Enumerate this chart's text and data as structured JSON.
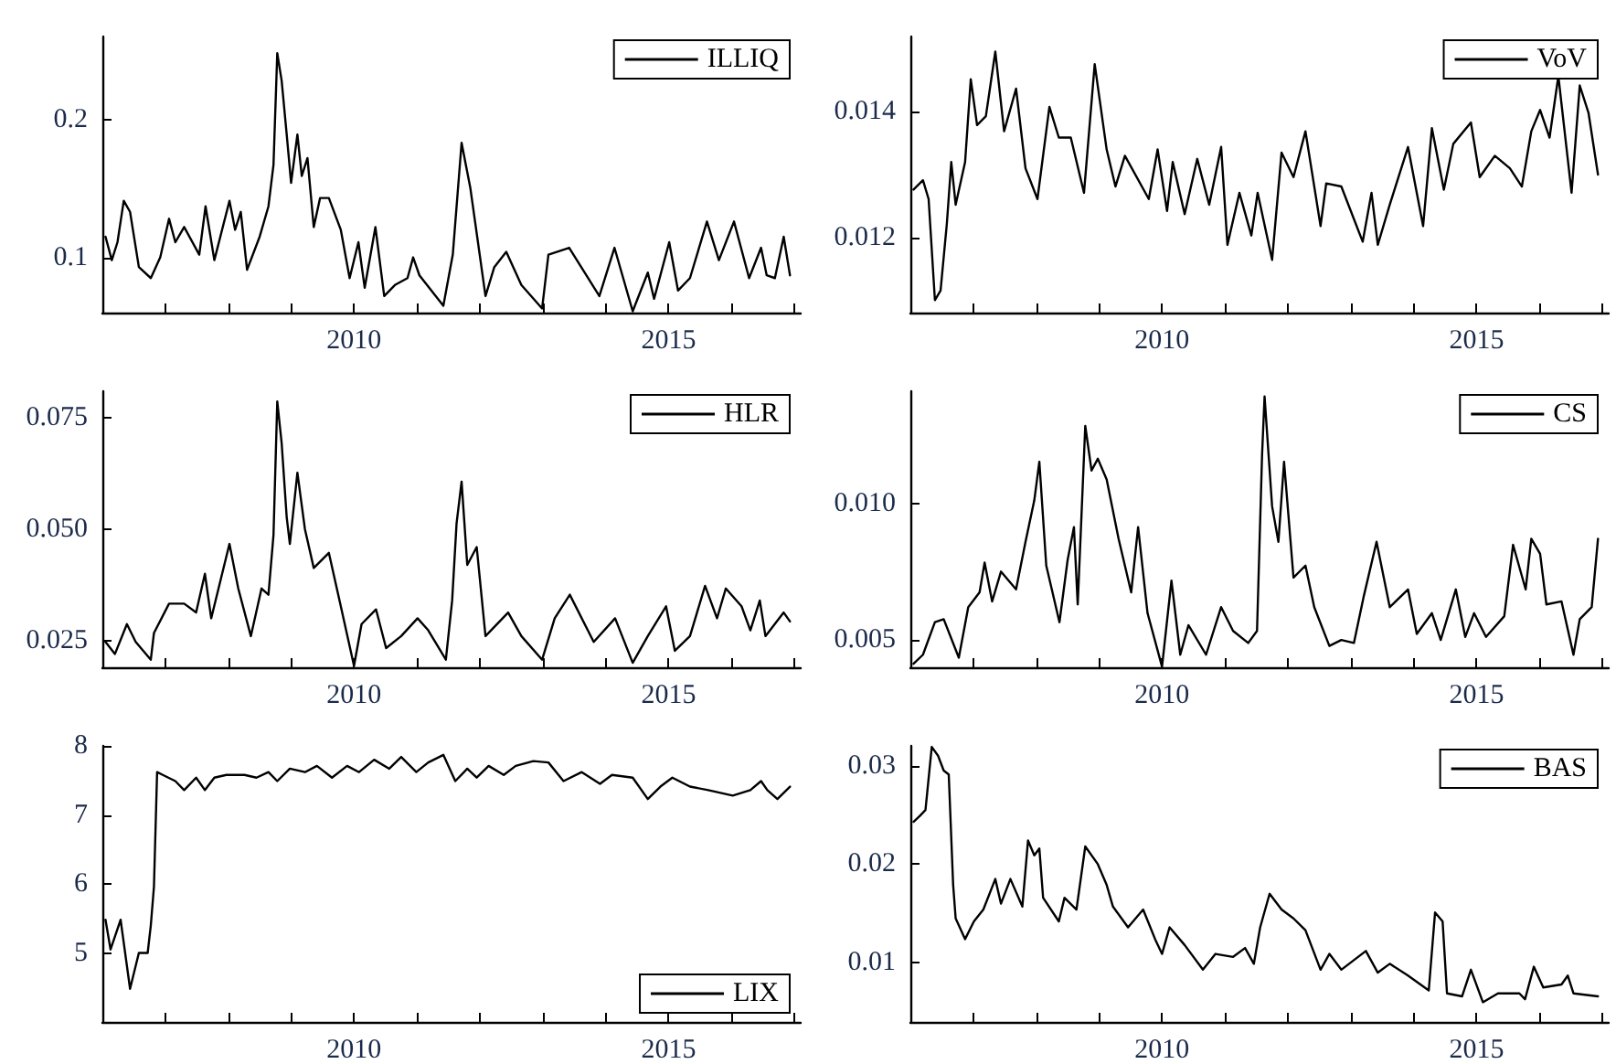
{
  "chart_data": [
    {
      "type": "line",
      "x": [
        2006.05,
        2006.15,
        2006.24,
        2006.34,
        2006.44,
        2006.58,
        2006.77,
        2006.92,
        2007.06,
        2007.16,
        2007.3,
        2007.54,
        2007.64,
        2007.78,
        2008.02,
        2008.11,
        2008.2,
        2008.3,
        2008.5,
        2008.64,
        2008.72,
        2008.78,
        2008.85,
        2008.93,
        2009.0,
        2009.1,
        2009.17,
        2009.26,
        2009.36,
        2009.46,
        2009.6,
        2009.79,
        2009.93,
        2010.07,
        2010.17,
        2010.34,
        2010.48,
        2010.65,
        2010.85,
        2010.94,
        2011.04,
        2011.42,
        2011.57,
        2011.71,
        2011.85,
        2012.09,
        2012.23,
        2012.42,
        2012.66,
        2012.99,
        2013.09,
        2013.42,
        2013.9,
        2014.14,
        2014.43,
        2014.67,
        2014.77,
        2015.01,
        2015.15,
        2015.34,
        2015.61,
        2015.8,
        2016.04,
        2016.28,
        2016.47,
        2016.56,
        2016.69,
        2016.83,
        2016.93
      ],
      "series": [
        {
          "name": "ILLIQ",
          "color": "#000000",
          "values": [
            0.115,
            0.098,
            0.111,
            0.141,
            0.133,
            0.093,
            0.085,
            0.1,
            0.128,
            0.111,
            0.122,
            0.102,
            0.137,
            0.098,
            0.141,
            0.12,
            0.133,
            0.091,
            0.115,
            0.137,
            0.167,
            0.248,
            0.228,
            0.189,
            0.154,
            0.189,
            0.159,
            0.172,
            0.122,
            0.143,
            0.143,
            0.12,
            0.085,
            0.111,
            0.078,
            0.122,
            0.072,
            0.08,
            0.085,
            0.1,
            0.087,
            0.065,
            0.102,
            0.183,
            0.15,
            0.072,
            0.093,
            0.104,
            0.08,
            0.063,
            0.102,
            0.107,
            0.072,
            0.107,
            0.061,
            0.089,
            0.07,
            0.111,
            0.076,
            0.085,
            0.126,
            0.098,
            0.126,
            0.085,
            0.107,
            0.087,
            0.085,
            0.115,
            0.087
          ]
        }
      ],
      "xlim": [
        2006,
        2017.1
      ],
      "xticks": [
        {
          "value": 2007,
          "label": null
        },
        {
          "value": 2008,
          "label": null
        },
        {
          "value": 2009,
          "label": null
        },
        {
          "value": 2010,
          "label": "2010"
        },
        {
          "value": 2011,
          "label": null
        },
        {
          "value": 2012,
          "label": null
        },
        {
          "value": 2013,
          "label": null
        },
        {
          "value": 2014,
          "label": null
        },
        {
          "value": 2015,
          "label": "2015"
        },
        {
          "value": 2016,
          "label": null
        },
        {
          "value": 2017,
          "label": null
        }
      ],
      "ylim": [
        0.06,
        0.26
      ],
      "yticks": [
        0.1,
        0.2
      ],
      "legend": "top right",
      "grid": false,
      "marker": "none",
      "line_style": "solid"
    },
    {
      "type": "line",
      "x": [
        2006.05,
        2006.2,
        2006.29,
        2006.39,
        2006.48,
        2006.58,
        2006.65,
        2006.72,
        2006.87,
        2006.96,
        2007.06,
        2007.2,
        2007.35,
        2007.49,
        2007.68,
        2007.83,
        2008.02,
        2008.21,
        2008.36,
        2008.55,
        2008.76,
        2008.93,
        2009.12,
        2009.26,
        2009.41,
        2009.79,
        2009.93,
        2010.08,
        2010.17,
        2010.36,
        2010.56,
        2010.75,
        2010.94,
        2011.04,
        2011.23,
        2011.42,
        2011.52,
        2011.75,
        2011.9,
        2012.09,
        2012.28,
        2012.52,
        2012.61,
        2012.85,
        2013.19,
        2013.33,
        2013.43,
        2013.62,
        2013.91,
        2014.15,
        2014.29,
        2014.48,
        2014.63,
        2014.91,
        2015.05,
        2015.29,
        2015.53,
        2015.72,
        2015.87,
        2016.01,
        2016.16,
        2016.3,
        2016.51,
        2016.64,
        2016.78,
        2016.93
      ],
      "series": [
        {
          "name": "VoV",
          "color": "#000000",
          "values": [
            0.01276,
            0.01291,
            0.01261,
            0.011,
            0.01115,
            0.01222,
            0.0132,
            0.01252,
            0.0132,
            0.01452,
            0.01379,
            0.01393,
            0.01496,
            0.01369,
            0.01437,
            0.0131,
            0.01261,
            0.01408,
            0.01359,
            0.01359,
            0.01271,
            0.01476,
            0.0134,
            0.01281,
            0.0133,
            0.01261,
            0.0134,
            0.01242,
            0.0132,
            0.01237,
            0.01325,
            0.01252,
            0.01344,
            0.01188,
            0.01271,
            0.01203,
            0.01271,
            0.01164,
            0.01335,
            0.01296,
            0.01369,
            0.01218,
            0.01286,
            0.01281,
            0.01193,
            0.01271,
            0.01188,
            0.01252,
            0.01344,
            0.01218,
            0.01374,
            0.01276,
            0.01349,
            0.01383,
            0.01296,
            0.0133,
            0.0131,
            0.01281,
            0.01369,
            0.01403,
            0.01359,
            0.01457,
            0.01271,
            0.01442,
            0.01398,
            0.013
          ]
        }
      ],
      "xlim": [
        2006,
        2017.1
      ],
      "xticks": [
        {
          "value": 2007,
          "label": null
        },
        {
          "value": 2008,
          "label": null
        },
        {
          "value": 2009,
          "label": null
        },
        {
          "value": 2010,
          "label": "2010"
        },
        {
          "value": 2011,
          "label": null
        },
        {
          "value": 2012,
          "label": null
        },
        {
          "value": 2013,
          "label": null
        },
        {
          "value": 2014,
          "label": null
        },
        {
          "value": 2015,
          "label": "2015"
        },
        {
          "value": 2016,
          "label": null
        },
        {
          "value": 2017,
          "label": null
        }
      ],
      "ylim": [
        0.0108,
        0.0152
      ],
      "yticks": [
        0.012,
        0.014
      ],
      "legend": "top right",
      "grid": false,
      "marker": "none",
      "line_style": "solid"
    },
    {
      "type": "line",
      "x": [
        2006.05,
        2006.2,
        2006.39,
        2006.53,
        2006.77,
        2006.82,
        2007.06,
        2007.3,
        2007.49,
        2007.63,
        2007.73,
        2008.02,
        2008.16,
        2008.36,
        2008.53,
        2008.64,
        2008.72,
        2008.78,
        2008.85,
        2008.93,
        2008.98,
        2009.1,
        2009.22,
        2009.36,
        2009.6,
        2009.79,
        2010.0,
        2010.12,
        2010.35,
        2010.51,
        2010.75,
        2011.01,
        2011.18,
        2011.46,
        2011.56,
        2011.63,
        2011.71,
        2011.8,
        2011.95,
        2012.09,
        2012.45,
        2012.66,
        2012.99,
        2013.19,
        2013.43,
        2013.81,
        2014.15,
        2014.43,
        2014.67,
        2014.96,
        2015.1,
        2015.34,
        2015.58,
        2015.77,
        2015.91,
        2016.16,
        2016.3,
        2016.45,
        2016.54,
        2016.83,
        2016.93
      ],
      "series": [
        {
          "name": "HLR",
          "color": "#000000",
          "values": [
            0.0247,
            0.022,
            0.0287,
            0.0247,
            0.0207,
            0.0267,
            0.0333,
            0.0333,
            0.0313,
            0.04,
            0.03,
            0.0467,
            0.0367,
            0.026,
            0.0367,
            0.0353,
            0.0487,
            0.0787,
            0.0693,
            0.0527,
            0.0467,
            0.0627,
            0.05,
            0.0413,
            0.0447,
            0.0327,
            0.0193,
            0.0287,
            0.032,
            0.0233,
            0.026,
            0.03,
            0.0273,
            0.0207,
            0.034,
            0.0513,
            0.0607,
            0.042,
            0.046,
            0.026,
            0.0313,
            0.026,
            0.0207,
            0.03,
            0.0353,
            0.0247,
            0.03,
            0.02,
            0.026,
            0.0327,
            0.0227,
            0.026,
            0.0373,
            0.03,
            0.0367,
            0.0327,
            0.0273,
            0.034,
            0.026,
            0.0313,
            0.0293
          ]
        }
      ],
      "xlim": [
        2006,
        2017.1
      ],
      "xticks": [
        {
          "value": 2007,
          "label": null
        },
        {
          "value": 2008,
          "label": null
        },
        {
          "value": 2009,
          "label": null
        },
        {
          "value": 2010,
          "label": "2010"
        },
        {
          "value": 2011,
          "label": null
        },
        {
          "value": 2012,
          "label": null
        },
        {
          "value": 2013,
          "label": null
        },
        {
          "value": 2014,
          "label": null
        },
        {
          "value": 2015,
          "label": "2015"
        },
        {
          "value": 2016,
          "label": null
        },
        {
          "value": 2017,
          "label": null
        }
      ],
      "ylim": [
        0.019,
        0.081
      ],
      "yticks": [
        0.025,
        {
          "value": 0.05,
          "label": "0.050"
        },
        0.075
      ],
      "legend": "top right",
      "grid": false,
      "marker": "none",
      "line_style": "solid"
    },
    {
      "type": "line",
      "x": [
        2006.05,
        2006.2,
        2006.39,
        2006.53,
        2006.77,
        2006.92,
        2007.1,
        2007.18,
        2007.3,
        2007.44,
        2007.68,
        2007.83,
        2007.97,
        2008.05,
        2008.16,
        2008.37,
        2008.5,
        2008.6,
        2008.66,
        2008.78,
        2008.88,
        2008.98,
        2009.12,
        2009.31,
        2009.51,
        2009.62,
        2009.77,
        2010.0,
        2010.15,
        2010.29,
        2010.42,
        2010.7,
        2010.94,
        2011.13,
        2011.37,
        2011.51,
        2011.59,
        2011.63,
        2011.75,
        2011.85,
        2011.94,
        2012.09,
        2012.28,
        2012.42,
        2012.66,
        2012.85,
        2013.05,
        2013.21,
        2013.41,
        2013.62,
        2013.91,
        2014.05,
        2014.29,
        2014.43,
        2014.67,
        2014.82,
        2014.96,
        2015.15,
        2015.44,
        2015.58,
        2015.78,
        2015.87,
        2016.01,
        2016.11,
        2016.35,
        2016.54,
        2016.64,
        2016.83,
        2016.93
      ],
      "series": [
        {
          "name": "CS",
          "color": "#000000",
          "values": [
            0.00413,
            0.00446,
            0.00565,
            0.00576,
            0.00435,
            0.0062,
            0.00674,
            0.00783,
            0.00641,
            0.0075,
            0.00685,
            0.00859,
            0.01011,
            0.01152,
            0.00772,
            0.00565,
            0.00793,
            0.00913,
            0.0063,
            0.01283,
            0.0112,
            0.01163,
            0.01087,
            0.0087,
            0.00674,
            0.00913,
            0.00598,
            0.00402,
            0.00717,
            0.00446,
            0.00554,
            0.00446,
            0.0062,
            0.00533,
            0.00489,
            0.00533,
            0.01174,
            0.01391,
            0.00989,
            0.00859,
            0.01152,
            0.00728,
            0.00772,
            0.0062,
            0.00478,
            0.005,
            0.00489,
            0.00663,
            0.00859,
            0.0062,
            0.00685,
            0.00522,
            0.00598,
            0.005,
            0.00685,
            0.00511,
            0.00598,
            0.00511,
            0.00587,
            0.00848,
            0.00685,
            0.0087,
            0.00815,
            0.0063,
            0.00641,
            0.00446,
            0.00576,
            0.0062,
            0.0087
          ]
        }
      ],
      "xlim": [
        2006,
        2017.1
      ],
      "xticks": [
        {
          "value": 2007,
          "label": null
        },
        {
          "value": 2008,
          "label": null
        },
        {
          "value": 2009,
          "label": null
        },
        {
          "value": 2010,
          "label": "2010"
        },
        {
          "value": 2011,
          "label": null
        },
        {
          "value": 2012,
          "label": null
        },
        {
          "value": 2013,
          "label": null
        },
        {
          "value": 2014,
          "label": null
        },
        {
          "value": 2015,
          "label": "2015"
        },
        {
          "value": 2016,
          "label": null
        },
        {
          "value": 2017,
          "label": null
        }
      ],
      "ylim": [
        0.004,
        0.0141
      ],
      "yticks": [
        0.005,
        {
          "value": 0.01,
          "label": "0.010"
        }
      ],
      "legend": "top right",
      "grid": false,
      "marker": "none",
      "line_style": "solid"
    },
    {
      "type": "line",
      "x": [
        2006.05,
        2006.13,
        2006.29,
        2006.44,
        2006.58,
        2006.72,
        2006.77,
        2006.82,
        2006.87,
        2006.96,
        2007.16,
        2007.3,
        2007.49,
        2007.63,
        2007.78,
        2007.97,
        2008.26,
        2008.45,
        2008.64,
        2008.78,
        2008.98,
        2009.22,
        2009.41,
        2009.65,
        2009.89,
        2010.08,
        2010.32,
        2010.56,
        2010.75,
        2010.99,
        2011.18,
        2011.42,
        2011.61,
        2011.8,
        2011.95,
        2012.14,
        2012.38,
        2012.57,
        2012.85,
        2013.09,
        2013.33,
        2013.62,
        2013.91,
        2014.1,
        2014.43,
        2014.67,
        2014.87,
        2015.06,
        2015.34,
        2015.63,
        2016.02,
        2016.3,
        2016.47,
        2016.57,
        2016.73,
        2016.93
      ],
      "series": [
        {
          "name": "LIX",
          "color": "#000000",
          "values": [
            5.48,
            5.05,
            5.48,
            4.48,
            5.0,
            5.0,
            5.4,
            5.96,
            7.62,
            7.58,
            7.49,
            7.36,
            7.54,
            7.36,
            7.54,
            7.58,
            7.58,
            7.54,
            7.62,
            7.49,
            7.67,
            7.62,
            7.71,
            7.54,
            7.71,
            7.62,
            7.8,
            7.67,
            7.84,
            7.62,
            7.76,
            7.87,
            7.49,
            7.67,
            7.54,
            7.71,
            7.58,
            7.71,
            7.78,
            7.76,
            7.49,
            7.62,
            7.45,
            7.58,
            7.54,
            7.23,
            7.41,
            7.54,
            7.41,
            7.36,
            7.28,
            7.36,
            7.49,
            7.36,
            7.23,
            7.41
          ]
        }
      ],
      "xlim": [
        2006,
        2017.1
      ],
      "xticks": [
        {
          "value": 2007,
          "label": null
        },
        {
          "value": 2008,
          "label": null
        },
        {
          "value": 2009,
          "label": null
        },
        {
          "value": 2010,
          "label": "2010"
        },
        {
          "value": 2011,
          "label": null
        },
        {
          "value": 2012,
          "label": null
        },
        {
          "value": 2013,
          "label": null
        },
        {
          "value": 2014,
          "label": null
        },
        {
          "value": 2015,
          "label": "2015"
        },
        {
          "value": 2016,
          "label": null
        },
        {
          "value": 2017,
          "label": null
        }
      ],
      "ylim": [
        4,
        8
      ],
      "yticks": [
        5,
        6,
        7,
        8
      ],
      "legend": "bottom right",
      "grid": false,
      "marker": "none",
      "line_style": "solid"
    },
    {
      "type": "line",
      "x": [
        2006.05,
        2006.15,
        2006.24,
        2006.34,
        2006.44,
        2006.53,
        2006.61,
        2006.68,
        2006.72,
        2006.87,
        2007.01,
        2007.16,
        2007.35,
        2007.44,
        2007.59,
        2007.78,
        2007.87,
        2007.97,
        2008.05,
        2008.11,
        2008.36,
        2008.45,
        2008.64,
        2008.78,
        2008.98,
        2009.12,
        2009.22,
        2009.46,
        2009.7,
        2009.89,
        2010.0,
        2010.12,
        2010.36,
        2010.65,
        2010.85,
        2011.13,
        2011.32,
        2011.46,
        2011.56,
        2011.71,
        2011.9,
        2012.09,
        2012.28,
        2012.52,
        2012.66,
        2012.85,
        2013.24,
        2013.43,
        2013.62,
        2013.91,
        2014.24,
        2014.34,
        2014.46,
        2014.53,
        2014.77,
        2014.91,
        2015.1,
        2015.34,
        2015.68,
        2015.77,
        2015.91,
        2016.06,
        2016.35,
        2016.45,
        2016.54,
        2016.93
      ],
      "series": [
        {
          "name": "BAS",
          "color": "#000000",
          "values": [
            0.0243,
            0.0249,
            0.0255,
            0.0319,
            0.031,
            0.0295,
            0.0291,
            0.0179,
            0.0145,
            0.0124,
            0.0142,
            0.0154,
            0.0185,
            0.016,
            0.0185,
            0.0157,
            0.0224,
            0.0209,
            0.0216,
            0.0166,
            0.0142,
            0.0166,
            0.0154,
            0.0218,
            0.02,
            0.0179,
            0.0157,
            0.0136,
            0.0154,
            0.0124,
            0.0109,
            0.0136,
            0.0118,
            0.0093,
            0.0109,
            0.0106,
            0.0115,
            0.0099,
            0.0136,
            0.017,
            0.0154,
            0.0145,
            0.0133,
            0.0093,
            0.0109,
            0.0093,
            0.0112,
            0.009,
            0.0099,
            0.0087,
            0.0072,
            0.0151,
            0.0142,
            0.0069,
            0.0066,
            0.0093,
            0.006,
            0.0069,
            0.0069,
            0.0063,
            0.0096,
            0.0075,
            0.0078,
            0.0087,
            0.0069,
            0.0066
          ]
        }
      ],
      "xlim": [
        2006,
        2017.1
      ],
      "xticks": [
        {
          "value": 2007,
          "label": null
        },
        {
          "value": 2008,
          "label": null
        },
        {
          "value": 2009,
          "label": null
        },
        {
          "value": 2010,
          "label": "2010"
        },
        {
          "value": 2011,
          "label": null
        },
        {
          "value": 2012,
          "label": null
        },
        {
          "value": 2013,
          "label": null
        },
        {
          "value": 2014,
          "label": null
        },
        {
          "value": 2015,
          "label": "2015"
        },
        {
          "value": 2016,
          "label": null
        },
        {
          "value": 2017,
          "label": null
        }
      ],
      "ylim": [
        0.004,
        0.032
      ],
      "yticks": [
        0.01,
        0.02,
        0.03
      ],
      "legend": "top right",
      "grid": false,
      "marker": "none",
      "line_style": "solid"
    }
  ]
}
